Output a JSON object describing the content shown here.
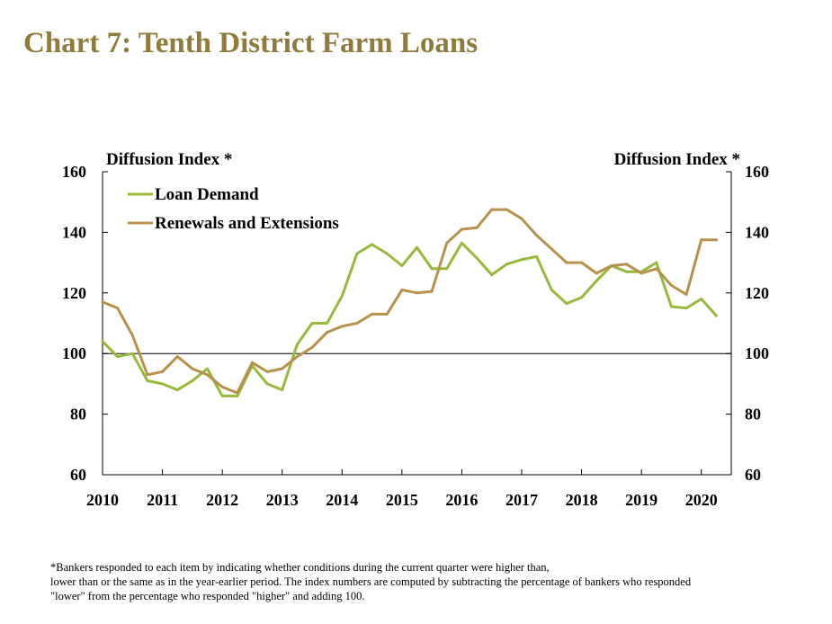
{
  "title": "Chart 7: Tenth District Farm Loans",
  "chart_data": {
    "type": "line",
    "ylabel_left": "Diffusion Index *",
    "ylabel_right": "Diffusion Index *",
    "ylim": [
      60,
      160
    ],
    "yticks": [
      60,
      80,
      100,
      120,
      140,
      160
    ],
    "xlim": [
      2010,
      2020.5
    ],
    "xticks": [
      "2010",
      "2011",
      "2012",
      "2013",
      "2014",
      "2015",
      "2016",
      "2017",
      "2018",
      "2019",
      "2020"
    ],
    "grid": false,
    "reference_line": 100,
    "legend_position": "top-left",
    "quarters_per_year": 4,
    "series": [
      {
        "name": "Loan Demand",
        "color": "#98b93c",
        "values": [
          104,
          99,
          100,
          91,
          90,
          88,
          91,
          95,
          86,
          86,
          96,
          90,
          88,
          103,
          110,
          110,
          119,
          133,
          136,
          133,
          129,
          135,
          128,
          128,
          136.5,
          131.5,
          126,
          129.5,
          131,
          132,
          121,
          116.5,
          118.5,
          124,
          129,
          127,
          127,
          130,
          115.5,
          115,
          118,
          112.5
        ]
      },
      {
        "name": "Renewals and Extensions",
        "color": "#b8924d",
        "values": [
          117,
          115,
          106,
          93,
          94,
          99,
          95,
          93,
          89,
          87,
          97,
          94,
          95,
          99,
          102,
          107,
          109,
          110,
          113,
          113,
          121,
          120,
          120.5,
          136.5,
          141,
          141.5,
          147.5,
          147.5,
          144.5,
          139,
          134.5,
          130,
          130,
          126.5,
          129,
          129.5,
          126.5,
          128,
          122.5,
          119.5,
          137.5,
          137.5
        ]
      }
    ]
  },
  "footnote": [
    "*Bankers responded to each item by indicating whether conditions during the current quarter were higher than,",
    "lower than or the same as in the year-earlier period.  The index numbers are computed by subtracting the percentage of bankers who responded",
    "\"lower\" from the percentage who responded \"higher\" and adding 100."
  ]
}
